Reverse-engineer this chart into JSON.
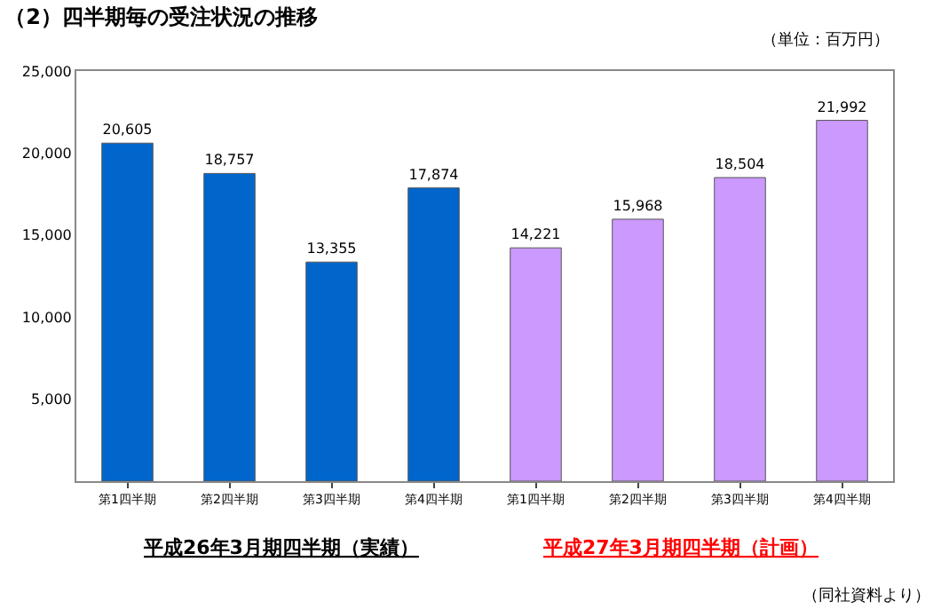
{
  "chart_data": {
    "type": "bar",
    "title": "（2）四半期毎の受注状況の推移",
    "categories": [
      "第1四半期",
      "第2四半期",
      "第3四半期",
      "第4四半期",
      "第1四半期",
      "第2四半期",
      "第3四半期",
      "第4四半期"
    ],
    "values": [
      20605,
      18757,
      13355,
      17874,
      14221,
      15968,
      18504,
      21992
    ],
    "colors": [
      "#0066cc",
      "#0066cc",
      "#0066cc",
      "#0066cc",
      "#cc99ff",
      "#cc99ff",
      "#cc99ff",
      "#cc99ff"
    ],
    "value_labels": [
      "20,605",
      "18,757",
      "13,355",
      "17,874",
      "14,221",
      "15,968",
      "18,504",
      "21,992"
    ],
    "ylim": [
      0,
      25000
    ],
    "yticks": [
      {
        "value": 0,
        "label": null
      },
      {
        "value": 5000,
        "label": "5,000"
      },
      {
        "value": 10000,
        "label": "10,000"
      },
      {
        "value": 15000,
        "label": "15,000"
      },
      {
        "value": 20000,
        "label": "20,000"
      },
      {
        "value": 25000,
        "label": "25,000"
      }
    ],
    "annotations": [
      "（単位：百万円）",
      "平成26年3月期四半期（実績）",
      "平成27年3月期四半期（計画）",
      "（同社資料より）"
    ]
  }
}
